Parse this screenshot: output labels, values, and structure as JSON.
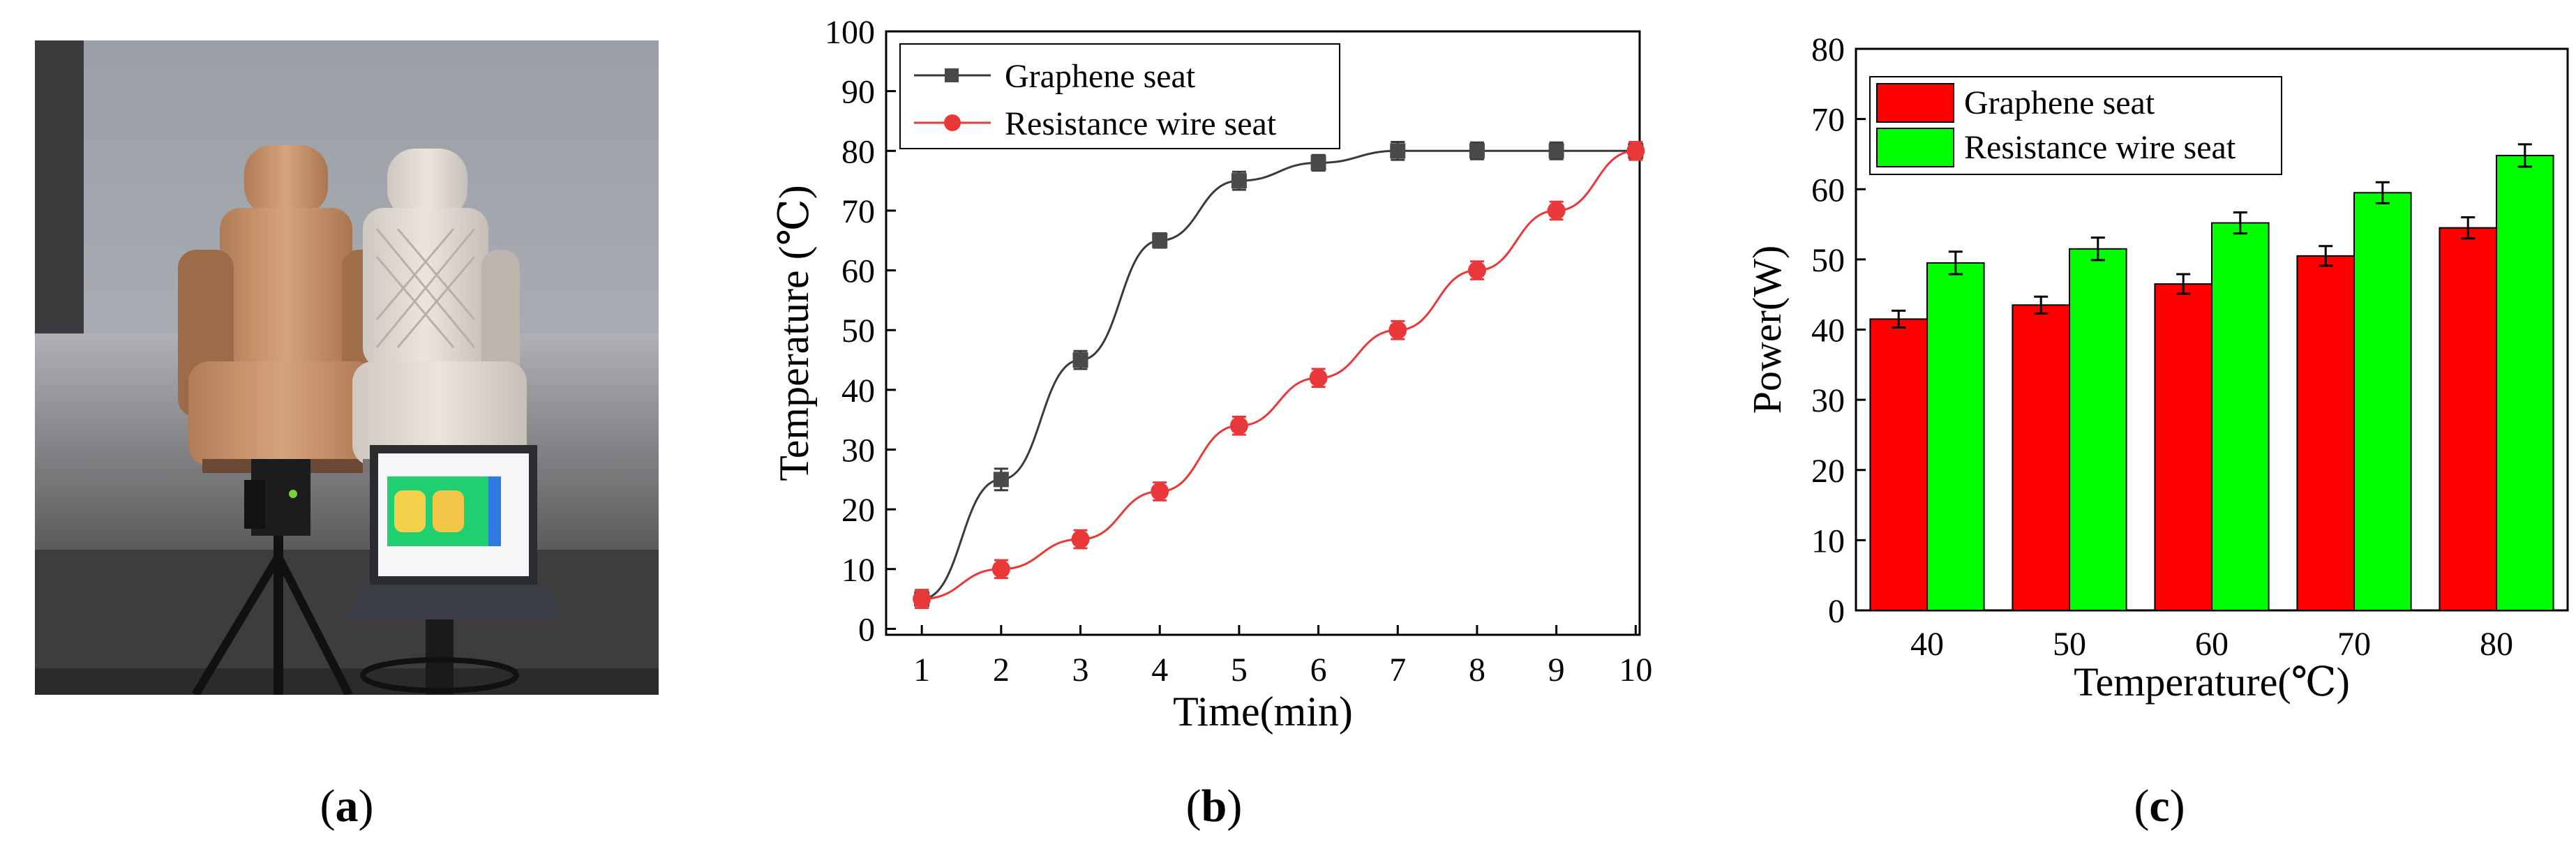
{
  "panel_labels": {
    "a": "a",
    "b": "b",
    "c": "c"
  },
  "photo": {
    "description_icons": [
      "graphene-seat-icon",
      "resistance-wire-seat-icon",
      "thermal-camera-icon",
      "laptop-icon"
    ]
  },
  "chart_data": [
    {
      "type": "line",
      "xlabel": "Time(min)",
      "ylabel": "Temperature (℃)",
      "xlim": [
        0.55,
        10.05
      ],
      "ylim": [
        -1,
        100
      ],
      "xticks": [
        1,
        2,
        3,
        4,
        5,
        6,
        7,
        8,
        9,
        10
      ],
      "yticks": [
        0,
        10,
        20,
        30,
        40,
        50,
        60,
        70,
        80,
        90,
        100
      ],
      "legend_position": "top-left",
      "series": [
        {
          "name": "Graphene seat",
          "color": "#3a3a3a",
          "marker": "square",
          "x": [
            1,
            2,
            3,
            4,
            5,
            6,
            7,
            8,
            9,
            10
          ],
          "y": [
            5,
            25,
            45,
            65,
            75,
            78,
            80,
            80,
            80,
            80
          ],
          "err": [
            1.5,
            1.8,
            1.5,
            1.2,
            1.5,
            1.3,
            1.5,
            1.4,
            1.4,
            1.3
          ]
        },
        {
          "name": "Resistance wire seat",
          "color": "#e8383a",
          "marker": "circle",
          "x": [
            1,
            2,
            3,
            4,
            5,
            6,
            7,
            8,
            9,
            10
          ],
          "y": [
            5,
            10,
            15,
            23,
            34,
            42,
            50,
            60,
            70,
            80
          ],
          "err": [
            1.5,
            1.5,
            1.5,
            1.5,
            1.5,
            1.5,
            1.5,
            1.5,
            1.5,
            1.5
          ]
        }
      ]
    },
    {
      "type": "bar",
      "xlabel": "Temperature(℃)",
      "ylabel": "Power(W)",
      "ylim": [
        0,
        80
      ],
      "yticks": [
        0,
        10,
        20,
        30,
        40,
        50,
        60,
        70,
        80
      ],
      "categories": [
        "40",
        "50",
        "60",
        "70",
        "80"
      ],
      "legend_position": "top-left",
      "series": [
        {
          "name": "Graphene seat",
          "color": "#ff0000",
          "values": [
            41.5,
            43.5,
            46.5,
            50.5,
            54.5
          ],
          "err": [
            1.2,
            1.2,
            1.4,
            1.4,
            1.5
          ]
        },
        {
          "name": "Resistance wire seat",
          "color": "#00ff00",
          "values": [
            49.5,
            51.5,
            55.2,
            59.5,
            64.8
          ],
          "err": [
            1.6,
            1.6,
            1.5,
            1.5,
            1.6
          ]
        }
      ]
    }
  ]
}
